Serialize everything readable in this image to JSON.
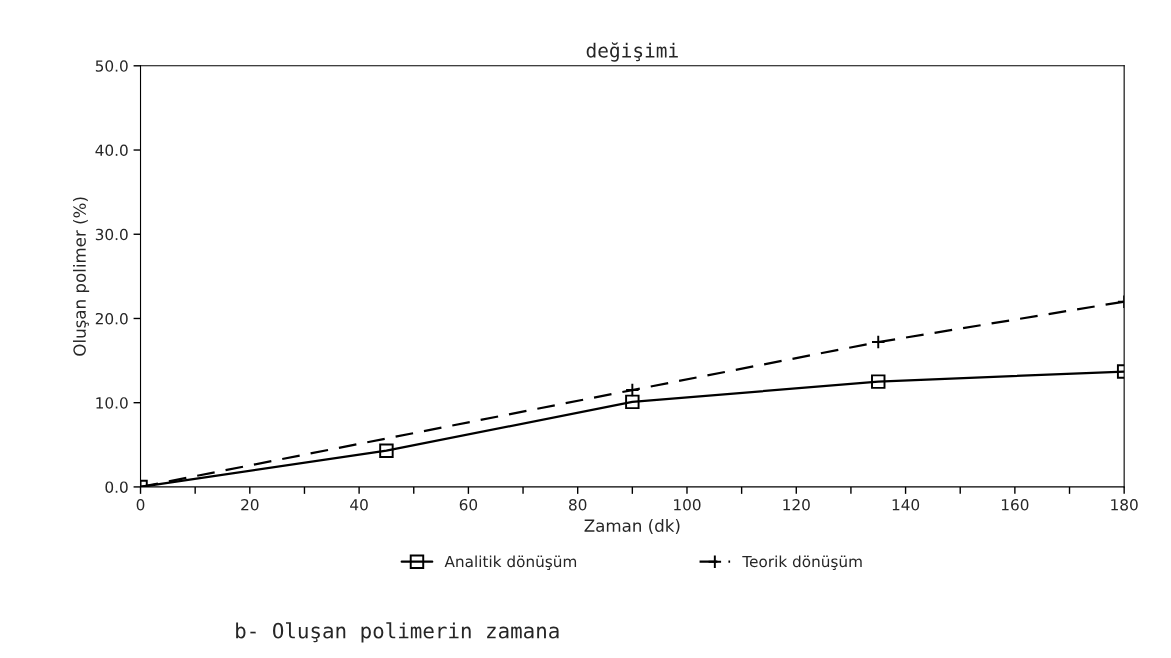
{
  "chart_data": {
    "type": "line",
    "title": "değişimi",
    "xlabel": "Zaman (dk)",
    "ylabel": "Oluşan polimer (%)",
    "annotations": [
      "b- Oluşan polimerin zamana"
    ],
    "series": [
      {
        "name": "Analitik dönüşüm",
        "color": "#000000",
        "marker": "square",
        "line_style": "solid",
        "x": [
          0,
          45,
          90,
          135,
          180
        ],
        "values": [
          0,
          4.3,
          10.1,
          12.5,
          13.7
        ]
      },
      {
        "name": "Teorik dönüşüm",
        "color": "#000000",
        "marker": "cross",
        "line_style": "dashed",
        "x": [
          0,
          90,
          135,
          180
        ],
        "values": [
          0,
          11.5,
          17.2,
          22.0
        ]
      }
    ],
    "xlim": [
      0,
      180
    ],
    "ylim": [
      0,
      50
    ],
    "xticks": [
      0,
      {
        "value": 10,
        "label": null
      },
      20,
      {
        "value": 30,
        "label": null
      },
      40,
      {
        "value": 50,
        "label": null
      },
      60,
      {
        "value": 70,
        "label": null
      },
      80,
      {
        "value": 90,
        "label": null
      },
      100,
      {
        "value": 110,
        "label": null
      },
      120,
      {
        "value": 130,
        "label": null
      },
      140,
      {
        "value": 150,
        "label": null
      },
      160,
      {
        "value": 170,
        "label": null
      },
      180
    ],
    "yticks": [
      {
        "value": 0,
        "label": "0.0"
      },
      {
        "value": 10,
        "label": "10.0"
      },
      {
        "value": 20,
        "label": "20.0"
      },
      {
        "value": 30,
        "label": "30.0"
      },
      {
        "value": 40,
        "label": "40.0"
      },
      {
        "value": 50,
        "label": "50.0"
      }
    ],
    "grid": false,
    "legend": "bottom"
  }
}
